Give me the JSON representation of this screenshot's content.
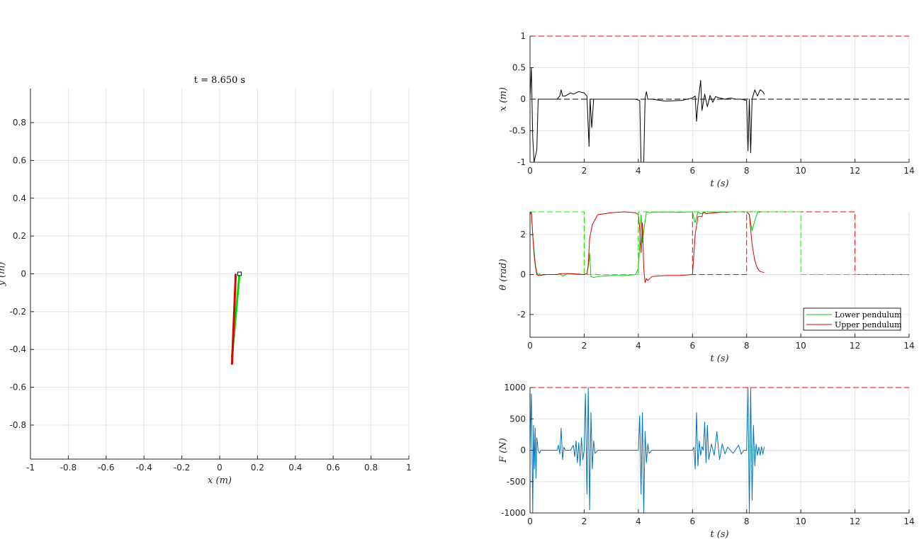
{
  "chart_data": [
    {
      "type": "line",
      "title": "t = 8.650 s",
      "xlabel": "x (m)",
      "ylabel": "y (m)",
      "xlim": [
        -1,
        1
      ],
      "ylim": [
        -0.98,
        0.98
      ],
      "xticks": [
        -1,
        -0.8,
        -0.6,
        -0.4,
        -0.2,
        0,
        0.2,
        0.4,
        0.6,
        0.8,
        1
      ],
      "yticks": [
        -0.8,
        -0.6,
        -0.4,
        -0.2,
        0,
        0.2,
        0.4,
        0.6,
        0.8
      ],
      "grid": true,
      "series": [
        {
          "color": "#00dd00",
          "points": [
            [
              0.105,
              0.0
            ],
            [
              0.065,
              -0.44
            ]
          ]
        },
        {
          "color": "#dd0000",
          "points": [
            [
              0.085,
              0.0
            ],
            [
              0.065,
              -0.48
            ]
          ]
        }
      ],
      "cart": {
        "x": 0.105,
        "y": 0.0
      }
    },
    {
      "type": "line",
      "xlabel": "t (s)",
      "ylabel": "x (m)",
      "xlim": [
        0,
        14
      ],
      "ylim": [
        -1,
        1
      ],
      "xticks": [
        0,
        2,
        4,
        6,
        8,
        10,
        12,
        14
      ],
      "yticks": [
        -1,
        -0.5,
        0,
        0.5,
        1
      ],
      "grid": true,
      "series": [
        {
          "color": "#000000",
          "style": "solid",
          "x": [
            0,
            0.05,
            0.1,
            0.15,
            0.25,
            0.3,
            0.4,
            0.6,
            1.0,
            1.1,
            1.15,
            1.2,
            1.3,
            1.5,
            1.6,
            1.8,
            2.0,
            2.1,
            2.18,
            2.22,
            2.28,
            2.35,
            2.45,
            2.7,
            3.5,
            3.9,
            4.05,
            4.1,
            4.2,
            4.25,
            4.3,
            4.35,
            4.5,
            5.0,
            5.6,
            6.0,
            6.1,
            6.15,
            6.2,
            6.3,
            6.35,
            6.45,
            6.55,
            6.65,
            6.75,
            6.85,
            7.0,
            7.2,
            7.4,
            7.6,
            7.8,
            8.0,
            8.05,
            8.1,
            8.15,
            8.2,
            8.3,
            8.4,
            8.5,
            8.6,
            8.65
          ],
          "y": [
            0,
            0.5,
            -0.6,
            -1,
            -0.8,
            0.0,
            0.0,
            0.0,
            0.0,
            0.05,
            0.15,
            0.05,
            0.05,
            0.1,
            0.08,
            0.12,
            0.1,
            0.05,
            -0.75,
            0.0,
            -0.45,
            0.0,
            0.0,
            0.0,
            0.0,
            0.0,
            -0.02,
            -1,
            -1,
            0.02,
            0.12,
            0.0,
            0.0,
            -0.03,
            -0.02,
            0.02,
            0.05,
            -0.35,
            -0.08,
            0.3,
            -0.18,
            0.08,
            -0.12,
            0.06,
            -0.05,
            0.04,
            0.02,
            0.0,
            0.02,
            0.0,
            0.0,
            -0.02,
            -0.82,
            0.0,
            -0.85,
            0.0,
            0.15,
            0.05,
            0.15,
            0.12,
            0.08
          ]
        },
        {
          "color": "#ff0000",
          "style": "dashed",
          "x": [
            0,
            14
          ],
          "y": [
            1,
            1
          ]
        },
        {
          "color": "#ff0000",
          "style": "dashed",
          "x": [
            0,
            14
          ],
          "y": [
            -1,
            -1
          ]
        },
        {
          "color": "#000000",
          "style": "dashed",
          "x": [
            0,
            14
          ],
          "y": [
            0,
            0
          ]
        }
      ]
    },
    {
      "type": "line",
      "xlabel": "t (s)",
      "ylabel": "θ (rad)",
      "xlim": [
        0,
        14
      ],
      "ylim": [
        -3.1416,
        3.1416
      ],
      "xticks": [
        0,
        2,
        4,
        6,
        8,
        10,
        12,
        14
      ],
      "yticks": [
        -2,
        0,
        2
      ],
      "grid": true,
      "legend": {
        "position": "bottom-right",
        "entries": [
          "Lower pendulum",
          "Upper pendulum"
        ]
      },
      "series": [
        {
          "name": "Lower pendulum",
          "color": "#00cc00",
          "style": "solid",
          "x": [
            0,
            0.05,
            0.1,
            0.15,
            0.2,
            0.25,
            0.3,
            0.35,
            0.4,
            0.6,
            1.0,
            1.1,
            1.2,
            1.4,
            1.6,
            1.8,
            2.0,
            2.1,
            2.15,
            2.2,
            2.25,
            2.35,
            2.5,
            3.0,
            3.5,
            3.9,
            4.0,
            4.05,
            4.1,
            4.15,
            4.2,
            4.3,
            4.4,
            4.5,
            5.0,
            5.5,
            6.0,
            6.05,
            6.1,
            6.2,
            6.3,
            6.5,
            7.0,
            7.5,
            8.0,
            8.1,
            8.15,
            8.2,
            8.3,
            8.4,
            8.5,
            8.65
          ],
          "y": [
            3.1,
            3.14,
            2.0,
            1.2,
            0.5,
            0.1,
            -0.05,
            0.05,
            -0.05,
            0.0,
            0.0,
            0.05,
            -0.08,
            0.05,
            0.02,
            0.0,
            0.0,
            0.05,
            0.4,
            1.05,
            -0.1,
            -0.15,
            -0.1,
            -0.05,
            -0.05,
            0.0,
            0.3,
            1.5,
            3.0,
            1.6,
            2.2,
            3.14,
            3.1,
            3.12,
            3.13,
            3.12,
            3.14,
            2.8,
            2.6,
            3.14,
            3.05,
            3.14,
            3.12,
            3.14,
            3.14,
            3.0,
            2.6,
            2.2,
            2.7,
            3.1,
            3.14,
            3.14
          ]
        },
        {
          "name": "Upper pendulum",
          "color": "#dd0000",
          "style": "solid",
          "x": [
            0,
            0.05,
            0.1,
            0.15,
            0.2,
            0.25,
            0.3,
            0.35,
            0.5,
            1.0,
            1.2,
            1.5,
            2.0,
            2.1,
            2.15,
            2.2,
            2.3,
            2.5,
            3.0,
            3.5,
            3.9,
            4.0,
            4.05,
            4.1,
            4.15,
            4.2,
            4.25,
            4.3,
            4.35,
            4.5,
            5.0,
            5.5,
            6.0,
            6.05,
            6.1,
            6.2,
            6.35,
            6.4,
            6.5,
            7.0,
            7.5,
            8.0,
            8.1,
            8.2,
            8.3,
            8.4,
            8.5,
            8.65
          ],
          "y": [
            3.0,
            3.14,
            2.0,
            1.0,
            0.4,
            0.0,
            -0.05,
            -0.05,
            0.0,
            0.0,
            0.05,
            0.05,
            0.0,
            0.05,
            0.5,
            1.8,
            2.5,
            3.0,
            3.1,
            3.14,
            3.1,
            3.0,
            2.3,
            1.1,
            2.6,
            0.3,
            -0.4,
            -0.2,
            -0.3,
            -0.1,
            -0.05,
            -0.05,
            0.0,
            1.0,
            2.0,
            2.9,
            2.9,
            3.14,
            3.05,
            3.12,
            3.14,
            3.14,
            3.0,
            1.5,
            0.7,
            0.3,
            0.15,
            0.1
          ]
        },
        {
          "color": "#ff0000",
          "style": "dashed",
          "x": [
            0,
            2,
            2,
            4,
            4,
            6,
            6,
            8,
            8,
            10,
            10,
            12,
            12,
            14
          ],
          "y": [
            3.1416,
            3.1416,
            0,
            0,
            3.1416,
            3.1416,
            0,
            0,
            3.1416,
            3.1416,
            3.1416,
            3.1416,
            0,
            0
          ]
        },
        {
          "color": "#00ff00",
          "style": "dashed",
          "x": [
            0,
            2,
            2,
            4,
            4,
            6,
            6,
            8,
            8,
            10,
            10,
            12,
            12,
            14
          ],
          "y": [
            3.1416,
            3.1416,
            0,
            0,
            3.1416,
            3.1416,
            3.1416,
            3.1416,
            3.1416,
            3.1416,
            0,
            0,
            0,
            0
          ]
        }
      ]
    },
    {
      "type": "line",
      "xlabel": "t (s)",
      "ylabel": "F (N)",
      "xlim": [
        0,
        14
      ],
      "ylim": [
        -1000,
        1000
      ],
      "xticks": [
        0,
        2,
        4,
        6,
        8,
        10,
        12,
        14
      ],
      "yticks": [
        -1000,
        -500,
        0,
        500,
        1000
      ],
      "grid": true,
      "series": [
        {
          "color": "#0072bd",
          "style": "solid",
          "x": [
            0,
            0.05,
            0.1,
            0.13,
            0.16,
            0.19,
            0.22,
            0.25,
            0.3,
            0.35,
            0.4,
            0.5,
            0.8,
            1.0,
            1.05,
            1.1,
            1.15,
            1.2,
            1.25,
            1.3,
            1.5,
            1.6,
            1.65,
            1.7,
            1.75,
            1.8,
            1.85,
            1.9,
            1.95,
            2.0,
            2.05,
            2.1,
            2.15,
            2.2,
            2.25,
            2.3,
            2.35,
            2.4,
            2.5,
            3.0,
            3.5,
            3.9,
            4.0,
            4.05,
            4.1,
            4.15,
            4.2,
            4.25,
            4.3,
            4.35,
            4.4,
            4.5,
            5.0,
            5.5,
            6.0,
            6.05,
            6.1,
            6.15,
            6.2,
            6.25,
            6.3,
            6.35,
            6.4,
            6.45,
            6.5,
            6.55,
            6.6,
            6.7,
            6.8,
            6.9,
            7.0,
            7.1,
            7.2,
            7.3,
            7.5,
            7.7,
            7.8,
            7.9,
            8.0,
            8.05,
            8.1,
            8.15,
            8.2,
            8.25,
            8.3,
            8.35,
            8.4,
            8.45,
            8.5,
            8.55,
            8.6,
            8.65
          ],
          "y": [
            0,
            900,
            -1000,
            400,
            -300,
            350,
            -450,
            200,
            0,
            -50,
            0,
            0,
            0,
            0,
            80,
            -60,
            350,
            -150,
            50,
            0,
            0,
            80,
            -100,
            150,
            -200,
            120,
            -250,
            200,
            -150,
            0,
            900,
            -700,
            1000,
            -950,
            600,
            -300,
            150,
            -50,
            0,
            0,
            0,
            0,
            0,
            550,
            -700,
            600,
            -1000,
            300,
            -200,
            100,
            -50,
            0,
            0,
            0,
            0,
            50,
            -300,
            600,
            -250,
            150,
            -80,
            60,
            0,
            450,
            -200,
            400,
            -150,
            100,
            -80,
            300,
            -150,
            100,
            -60,
            50,
            -50,
            80,
            -60,
            0,
            0,
            1000,
            -1000,
            1000,
            -800,
            400,
            -250,
            100,
            -80,
            50,
            -80,
            60,
            -60,
            50
          ]
        },
        {
          "color": "#ff0000",
          "style": "dashed",
          "x": [
            0,
            14
          ],
          "y": [
            1000,
            1000
          ]
        },
        {
          "color": "#ff0000",
          "style": "dashed",
          "x": [
            0,
            14
          ],
          "y": [
            -1000,
            -1000
          ]
        }
      ]
    }
  ]
}
